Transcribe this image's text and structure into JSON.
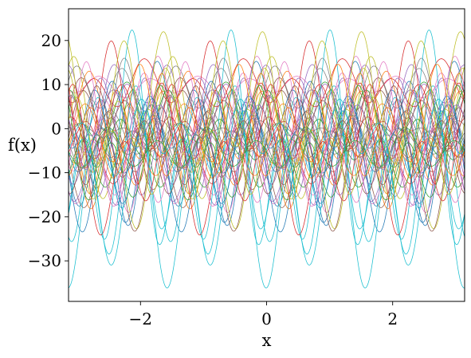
{
  "chart_data": {
    "type": "line",
    "xlabel": "x",
    "ylabel": "f(x)",
    "xlim": [
      -3.14159,
      3.14159
    ],
    "ylim": [
      -39.2,
      27.2
    ],
    "x_ticks": [
      -2,
      0,
      2
    ],
    "x_tick_labels": [
      "−2",
      "0",
      "2"
    ],
    "y_ticks": [
      -30,
      -20,
      -10,
      0,
      10,
      20
    ],
    "y_tick_labels": [
      "−30",
      "−20",
      "−10",
      "0",
      "10",
      "20"
    ],
    "grid": false,
    "legend": "none",
    "family": "f(x) = A·cos(4x + φ) + B·cos(8x + ψ) + C",
    "palette": [
      "#1f77b4",
      "#ff7f0e",
      "#2ca02c",
      "#d62728",
      "#9467bd",
      "#8c564b",
      "#e377c2",
      "#7f7f7f",
      "#bcbd22",
      "#17becf"
    ],
    "series": [
      {
        "A": 4.8,
        "phi": 0.6,
        "B": 10.8,
        "psi": 2.0,
        "C": -8.4
      },
      {
        "A": 4.0,
        "phi": 1.8,
        "B": 9.6,
        "psi": 0.4,
        "C": -1.2
      },
      {
        "A": 5.1,
        "phi": 2.9,
        "B": 5.2,
        "psi": 5.0,
        "C": 0.6
      },
      {
        "A": 3.1,
        "phi": 0.1,
        "B": 5.1,
        "psi": 3.8,
        "C": -4.4
      },
      {
        "A": 10.0,
        "phi": 1.1,
        "B": 8.2,
        "psi": 5.8,
        "C": 2.6
      },
      {
        "A": 4.4,
        "phi": 2.5,
        "B": 7.2,
        "psi": 1.1,
        "C": -6.6
      },
      {
        "A": 0.6,
        "phi": 5.4,
        "B": 2.0,
        "psi": 2.3,
        "C": 9.6
      },
      {
        "A": 1.3,
        "phi": 4.0,
        "B": 4.1,
        "psi": 0.9,
        "C": -1.1
      },
      {
        "A": 8.8,
        "phi": 0.4,
        "B": 9.5,
        "psi": 5.3,
        "C": 0.8
      },
      {
        "A": 4.1,
        "phi": 3.3,
        "B": 13.6,
        "psi": 2.7,
        "C": -8.2
      },
      {
        "A": 10.5,
        "phi": 6.0,
        "B": 11.1,
        "psi": 1.7,
        "C": -1.2
      },
      {
        "A": 7.0,
        "phi": 0.7,
        "B": 10.5,
        "psi": 0.6,
        "C": -4.5
      },
      {
        "A": 5.6,
        "phi": 2.2,
        "B": 8.0,
        "psi": 4.4,
        "C": -4.8
      },
      {
        "A": 2.3,
        "phi": 1.3,
        "B": 4.0,
        "psi": 3.0,
        "C": 9.6
      },
      {
        "A": 6.8,
        "phi": 4.7,
        "B": 7.8,
        "psi": 0.2,
        "C": -0.5
      },
      {
        "A": 6.1,
        "phi": 5.6,
        "B": 5.1,
        "psi": 4.6,
        "C": 0.4
      },
      {
        "A": 6.0,
        "phi": 3.6,
        "B": 7.5,
        "psi": 1.9,
        "C": -6.3
      },
      {
        "A": 3.4,
        "phi": 4.4,
        "B": 6.2,
        "psi": 5.5,
        "C": 7.5
      },
      {
        "A": 3.1,
        "phi": 0.9,
        "B": 5.1,
        "psi": 2.5,
        "C": -3.7
      },
      {
        "A": 6.6,
        "phi": 1.6,
        "B": 14.5,
        "psi": 4.1,
        "C": -10.8
      },
      {
        "A": 10.5,
        "phi": 2.6,
        "B": 9.5,
        "psi": 1.2,
        "C": -4.2
      },
      {
        "A": 6.1,
        "phi": 5.1,
        "B": 6.7,
        "psi": 3.6,
        "C": 0.3
      },
      {
        "A": 3.6,
        "phi": 0.3,
        "B": 6.3,
        "psi": 6.1,
        "C": -0.9
      },
      {
        "A": 5.1,
        "phi": 3.9,
        "B": 12.8,
        "psi": 0.8,
        "C": 2.3
      },
      {
        "A": 8.8,
        "phi": 1.4,
        "B": 9.3,
        "psi": 2.9,
        "C": -6.6
      },
      {
        "A": 6.8,
        "phi": 4.2,
        "B": 6.9,
        "psi": 4.9,
        "C": -0.2
      },
      {
        "A": 9.8,
        "phi": 0.0,
        "B": 10.3,
        "psi": 1.5,
        "C": -1.5
      },
      {
        "A": 6.4,
        "phi": 2.0,
        "B": 10.0,
        "psi": 5.7,
        "C": 1.5
      },
      {
        "A": 9.7,
        "phi": 5.8,
        "B": 10.9,
        "psi": 0.5,
        "C": -4.8
      },
      {
        "A": 13.1,
        "phi": 3.0,
        "B": 11.5,
        "psi": 3.3,
        "C": -11.8
      },
      {
        "A": 2.6,
        "phi": 1.0,
        "B": 6.3,
        "psi": 2.1,
        "C": -3.5
      },
      {
        "A": 4.2,
        "phi": 4.9,
        "B": 5.2,
        "psi": 4.3,
        "C": -3.5
      },
      {
        "A": 6.5,
        "phi": 0.5,
        "B": 9.3,
        "psi": 0.9,
        "C": -6.0
      },
      {
        "A": 3.8,
        "phi": 2.7,
        "B": 6.0,
        "psi": 5.9,
        "C": 0.3
      },
      {
        "A": 4.7,
        "phi": 3.4,
        "B": 8.6,
        "psi": 2.4,
        "C": -0.1
      },
      {
        "A": 5.3,
        "phi": 5.3,
        "B": 11.0,
        "psi": 1.0,
        "C": -7.0
      },
      {
        "A": 8.2,
        "phi": 1.2,
        "B": 8.1,
        "psi": 3.1,
        "C": -3.3
      },
      {
        "A": 1.7,
        "phi": 4.5,
        "B": 2.0,
        "psi": 5.2,
        "C": -1.5
      },
      {
        "A": 10.0,
        "phi": 0.8,
        "B": 11.5,
        "psi": 0.3,
        "C": 2.2
      },
      {
        "A": 12.4,
        "phi": 2.3,
        "B": 17.3,
        "psi": 4.5,
        "C": -7.3
      },
      {
        "A": 6.3,
        "phi": 5.9,
        "B": 9.1,
        "psi": 2.6,
        "C": -1.6
      },
      {
        "A": 4.9,
        "phi": 1.7,
        "B": 10.2,
        "psi": 3.5,
        "C": -0.5
      },
      {
        "A": 1.5,
        "phi": 3.7,
        "B": 3.7,
        "psi": 1.3,
        "C": -4.9
      },
      {
        "A": 7.6,
        "phi": 0.2,
        "B": 11.6,
        "psi": 5.6,
        "C": -8.2
      },
      {
        "A": 6.0,
        "phi": 2.8,
        "B": 7.4,
        "psi": 0.7,
        "C": 2.3
      },
      {
        "A": 4.4,
        "phi": 4.1,
        "B": 9.2,
        "psi": 2.8,
        "C": -3.5
      },
      {
        "A": 7.6,
        "phi": 5.2,
        "B": 12.1,
        "psi": 4.0,
        "C": -4.5
      },
      {
        "A": 2.5,
        "phi": 1.5,
        "B": 4.2,
        "psi": 1.6,
        "C": -3.1
      },
      {
        "A": 7.3,
        "phi": 3.2,
        "B": 12.2,
        "psi": 5.4,
        "C": 1.2
      },
      {
        "A": 13.0,
        "phi": 0.6,
        "B": 10.1,
        "psi": 3.9,
        "C": -8.1
      }
    ]
  }
}
